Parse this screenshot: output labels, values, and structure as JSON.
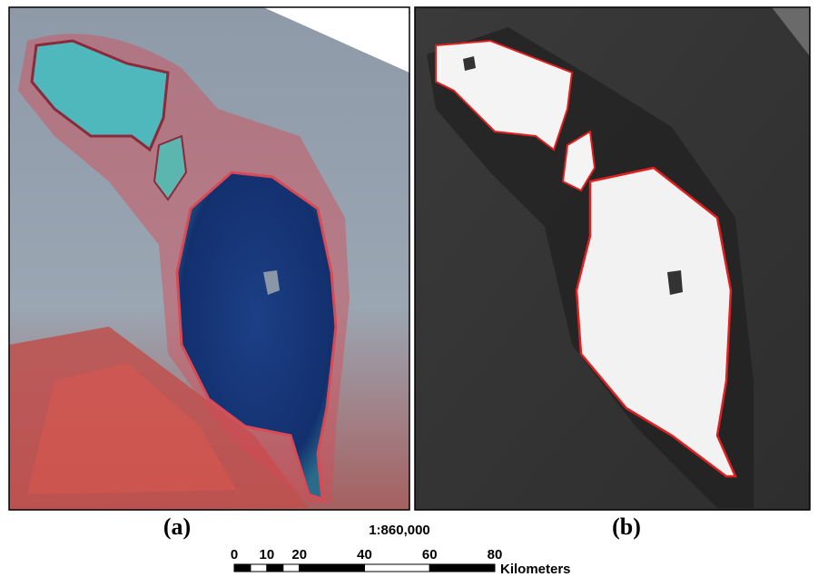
{
  "panels": [
    {
      "label": "(a)"
    },
    {
      "label": "(b)"
    }
  ],
  "scale_bar": {
    "ratio": "1:860,000",
    "ticks": [
      0,
      10,
      20,
      40,
      60,
      80
    ],
    "unit": "Kilometers"
  }
}
